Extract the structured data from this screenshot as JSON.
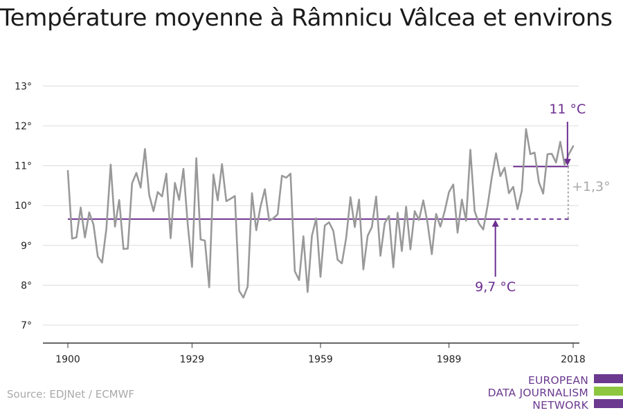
{
  "title": "Température moyenne à Râmnicu Vâlcea et environs",
  "source": "Source: EDJNet / ECMWF",
  "logo": {
    "lines": [
      "EUROPEAN",
      "DATA JOURNALISM",
      "NETWORK"
    ],
    "colors": {
      "purple": "#6b3a8f",
      "green": "#8dc63f"
    }
  },
  "chart_data": {
    "type": "line",
    "title": "Température moyenne à Râmnicu Vâlcea et environs",
    "xlabel": "",
    "ylabel": "",
    "xlim": [
      1900,
      2018
    ],
    "ylim": [
      6.5,
      13
    ],
    "x_ticks": [
      1900,
      1929,
      1959,
      1989,
      2018
    ],
    "y_ticks": [
      7,
      8,
      9,
      10,
      11,
      12,
      13
    ],
    "y_tick_labels": [
      "7°",
      "8°",
      "9°",
      "10°",
      "11°",
      "12°",
      "13°"
    ],
    "grid": true,
    "series": [
      {
        "color": "#999999",
        "x": [
          1900,
          1901,
          1902,
          1903,
          1904,
          1905,
          1906,
          1907,
          1908,
          1909,
          1910,
          1911,
          1912,
          1913,
          1914,
          1915,
          1916,
          1917,
          1918,
          1919,
          1920,
          1921,
          1922,
          1923,
          1924,
          1925,
          1926,
          1927,
          1928,
          1929,
          1930,
          1931,
          1932,
          1933,
          1934,
          1935,
          1936,
          1937,
          1938,
          1939,
          1940,
          1941,
          1942,
          1943,
          1944,
          1945,
          1946,
          1947,
          1948,
          1949,
          1950,
          1951,
          1952,
          1953,
          1954,
          1955,
          1956,
          1957,
          1958,
          1959,
          1960,
          1961,
          1962,
          1963,
          1964,
          1965,
          1966,
          1967,
          1968,
          1969,
          1970,
          1971,
          1972,
          1973,
          1974,
          1975,
          1976,
          1977,
          1978,
          1979,
          1980,
          1981,
          1982,
          1983,
          1984,
          1985,
          1986,
          1987,
          1988,
          1989,
          1990,
          1991,
          1992,
          1993,
          1994,
          1995,
          1996,
          1997,
          1998,
          1999,
          2000,
          2001,
          2002,
          2003,
          2004,
          2005,
          2006,
          2007,
          2008,
          2009,
          2010,
          2011,
          2012,
          2013,
          2014,
          2015,
          2016,
          2017,
          2018
        ],
        "values": [
          10.87,
          9.17,
          9.2,
          9.95,
          9.2,
          9.83,
          9.52,
          8.72,
          8.57,
          9.42,
          11.03,
          9.47,
          10.14,
          8.91,
          8.92,
          10.56,
          10.82,
          10.45,
          11.42,
          10.27,
          9.86,
          10.34,
          10.23,
          10.8,
          9.18,
          10.57,
          10.14,
          10.92,
          9.53,
          8.46,
          11.19,
          9.15,
          9.12,
          7.95,
          10.78,
          10.13,
          11.04,
          10.11,
          10.17,
          10.24,
          7.86,
          7.69,
          7.97,
          10.31,
          9.38,
          9.98,
          10.41,
          9.62,
          9.68,
          9.78,
          10.75,
          10.7,
          10.8,
          8.35,
          8.13,
          9.23,
          7.83,
          9.24,
          9.68,
          8.21,
          9.5,
          9.58,
          9.36,
          8.64,
          8.55,
          9.19,
          10.21,
          9.46,
          10.15,
          8.4,
          9.24,
          9.46,
          10.23,
          8.74,
          9.56,
          9.74,
          8.45,
          9.82,
          8.86,
          9.97,
          8.9,
          9.86,
          9.64,
          10.13,
          9.56,
          8.78,
          9.79,
          9.47,
          9.86,
          10.34,
          10.53,
          9.32,
          10.15,
          9.62,
          11.4,
          9.86,
          9.55,
          9.4,
          9.99,
          10.71,
          11.31,
          10.74,
          10.95,
          10.31,
          10.47,
          9.91,
          10.37,
          11.92,
          11.29,
          11.33,
          10.59,
          10.3,
          11.29,
          11.3,
          11.08,
          11.6,
          11.03,
          11.29,
          11.49
        ]
      }
    ],
    "reference_lines": [
      {
        "label": "9,7 °C",
        "value": 9.66,
        "x_start": 1900,
        "x_end": 2000,
        "dashed_to": 2017,
        "color": "#6b2d8f"
      },
      {
        "label": "11 °C",
        "value": 10.98,
        "x_start": 2004,
        "x_end": 2017,
        "color": "#6b2d8f"
      }
    ],
    "annotations": [
      {
        "text": "11 °C",
        "color": "#6b2d8f"
      },
      {
        "text": "9,7 °C",
        "color": "#6b2d8f"
      },
      {
        "text": "+1,3°",
        "color": "#a9a9a9"
      }
    ]
  }
}
